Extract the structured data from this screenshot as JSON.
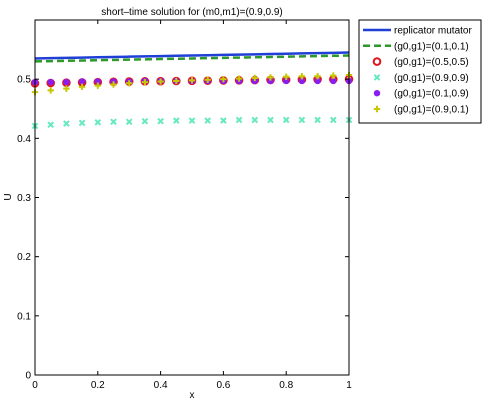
{
  "chart_data": {
    "type": "line",
    "title": "short–time solution for (m0,m1)=(0.9,0.9)",
    "xlabel": "x",
    "ylabel": "U",
    "xlim": [
      0,
      1
    ],
    "ylim": [
      0,
      0.6
    ],
    "xticks": [
      "0",
      "0.2",
      "0.4",
      "0.6",
      "0.8",
      "1"
    ],
    "xtick_values": [
      0,
      0.2,
      0.4,
      0.6,
      0.8,
      1
    ],
    "yticks": [
      "0",
      "0.1",
      "0.2",
      "0.3",
      "0.4",
      "0.5"
    ],
    "ytick_values": [
      0,
      0.1,
      0.2,
      0.3,
      0.4,
      0.5
    ],
    "grid": false,
    "legend_position": "outside-top-right",
    "x": [
      0,
      0.05,
      0.1,
      0.15,
      0.2,
      0.25,
      0.3,
      0.35,
      0.4,
      0.45,
      0.5,
      0.55,
      0.6,
      0.65,
      0.7,
      0.75,
      0.8,
      0.85,
      0.9,
      0.95,
      1
    ],
    "series": [
      {
        "name": "replicator mutator",
        "style": "line-solid",
        "color": "#1f3fd6",
        "values": [
          0.535,
          0.5355,
          0.536,
          0.5365,
          0.537,
          0.5375,
          0.538,
          0.5385,
          0.539,
          0.5395,
          0.54,
          0.5405,
          0.541,
          0.5415,
          0.542,
          0.5425,
          0.543,
          0.5435,
          0.544,
          0.5445,
          0.545
        ]
      },
      {
        "name": "(g0,g1)=(0.1,0.1)",
        "style": "line-dashed",
        "color": "#2b9a2b",
        "values": [
          0.53,
          0.5305,
          0.531,
          0.5315,
          0.532,
          0.5325,
          0.533,
          0.5335,
          0.534,
          0.5345,
          0.535,
          0.5355,
          0.536,
          0.5365,
          0.537,
          0.5375,
          0.538,
          0.5385,
          0.539,
          0.5395,
          0.54
        ]
      },
      {
        "name": "(g0,g1)=(0.5,0.5)",
        "style": "marker-ring",
        "color": "#e0141e",
        "values": [
          0.493,
          0.4935,
          0.494,
          0.4945,
          0.495,
          0.4955,
          0.496,
          0.4963,
          0.4966,
          0.4969,
          0.4972,
          0.4975,
          0.4978,
          0.4981,
          0.4984,
          0.4987,
          0.499,
          0.4993,
          0.4996,
          0.4998,
          0.5
        ]
      },
      {
        "name": "(g0,g1)=(0.9,0.9)",
        "style": "marker-x",
        "color": "#66e8c0",
        "values": [
          0.421,
          0.423,
          0.425,
          0.426,
          0.427,
          0.428,
          0.428,
          0.429,
          0.429,
          0.43,
          0.43,
          0.43,
          0.43,
          0.431,
          0.431,
          0.431,
          0.431,
          0.431,
          0.431,
          0.431,
          0.431
        ]
      },
      {
        "name": "(g0,g1)=(0.1,0.9)",
        "style": "marker-dot",
        "color": "#8a1ef0",
        "values": [
          0.495,
          0.495,
          0.495,
          0.496,
          0.496,
          0.496,
          0.496,
          0.497,
          0.497,
          0.497,
          0.497,
          0.497,
          0.497,
          0.497,
          0.497,
          0.497,
          0.497,
          0.497,
          0.497,
          0.497,
          0.497
        ]
      },
      {
        "name": "(g0,g1)=(0.9,0.1)",
        "style": "marker-plus",
        "color": "#c8c800",
        "values": [
          0.478,
          0.481,
          0.484,
          0.487,
          0.489,
          0.491,
          0.493,
          0.495,
          0.496,
          0.497,
          0.498,
          0.499,
          0.5,
          0.501,
          0.502,
          0.503,
          0.504,
          0.505,
          0.505,
          0.506,
          0.507
        ]
      }
    ]
  }
}
